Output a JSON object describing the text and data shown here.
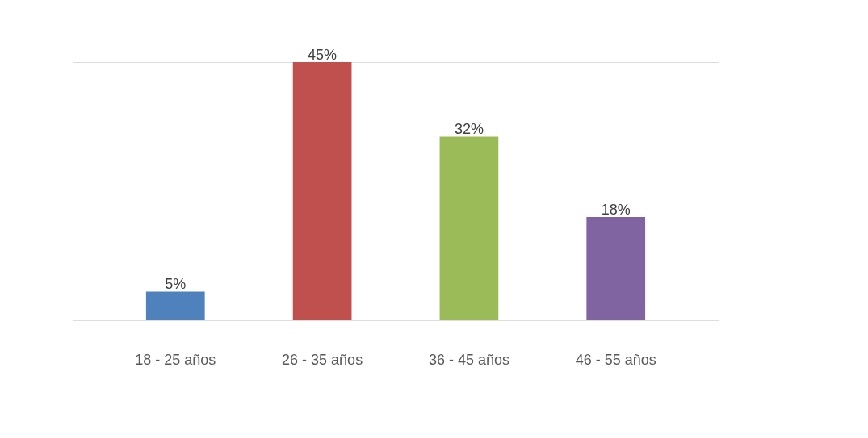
{
  "chart_data": {
    "type": "bar",
    "categories": [
      "18 - 25 años",
      "26 - 35 años",
      "36 - 45 años",
      "46 - 55 años"
    ],
    "values": [
      5,
      45,
      32,
      18
    ],
    "colors": [
      "#4f81bd",
      "#c0504d",
      "#9bbb59",
      "#8064a2"
    ],
    "value_labels": [
      "5%",
      "45%",
      "32%",
      "18%"
    ]
  }
}
